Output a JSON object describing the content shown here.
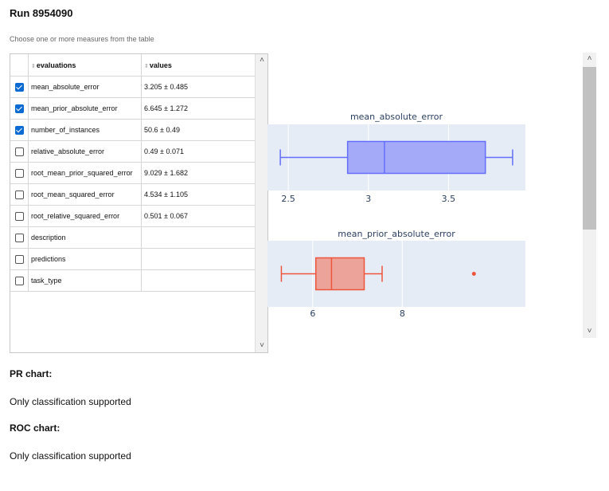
{
  "run_title": "Run 8954090",
  "hint": "Choose one or more measures from the table",
  "table": {
    "headers": {
      "evaluations": "evaluations",
      "values": "values"
    },
    "rows": [
      {
        "name": "mean_absolute_error",
        "value": "3.205 ± 0.485",
        "checked": true
      },
      {
        "name": "mean_prior_absolute_error",
        "value": "6.645 ± 1.272",
        "checked": true
      },
      {
        "name": "number_of_instances",
        "value": "50.6 ± 0.49",
        "checked": true
      },
      {
        "name": "relative_absolute_error",
        "value": "0.49 ± 0.071",
        "checked": false
      },
      {
        "name": "root_mean_prior_squared_error",
        "value": "9.029 ± 1.682",
        "checked": false
      },
      {
        "name": "root_mean_squared_error",
        "value": "4.534 ± 1.105",
        "checked": false
      },
      {
        "name": "root_relative_squared_error",
        "value": "0.501 ± 0.067",
        "checked": false
      },
      {
        "name": "description",
        "value": "",
        "checked": false
      },
      {
        "name": "predictions",
        "value": "",
        "checked": false
      },
      {
        "name": "task_type",
        "value": "",
        "checked": false
      }
    ]
  },
  "chart_data": [
    {
      "type": "box",
      "title": "mean_absolute_error",
      "color": "#636efa",
      "fill": "#a4aaf7",
      "xlim": [
        2.37,
        3.98
      ],
      "ticks": [
        2.5,
        3,
        3.5
      ],
      "tick_labels": [
        "2.5",
        "3",
        "3.5"
      ],
      "min": 2.45,
      "q1": 2.87,
      "median": 3.1,
      "q3": 3.73,
      "max": 3.9,
      "outliers": []
    },
    {
      "type": "box",
      "title": "mean_prior_absolute_error",
      "color": "#ef553b",
      "fill": "#eca49a",
      "xlim": [
        4.99,
        10.75
      ],
      "ticks": [
        6,
        8
      ],
      "tick_labels": [
        "6",
        "8"
      ],
      "min": 5.3,
      "q1": 6.07,
      "median": 6.42,
      "q3": 7.15,
      "max": 7.55,
      "outliers": [
        9.6
      ]
    }
  ],
  "pr_chart": {
    "label": "PR chart:",
    "text": "Only classification supported"
  },
  "roc_chart": {
    "label": "ROC chart:",
    "text": "Only classification supported"
  }
}
